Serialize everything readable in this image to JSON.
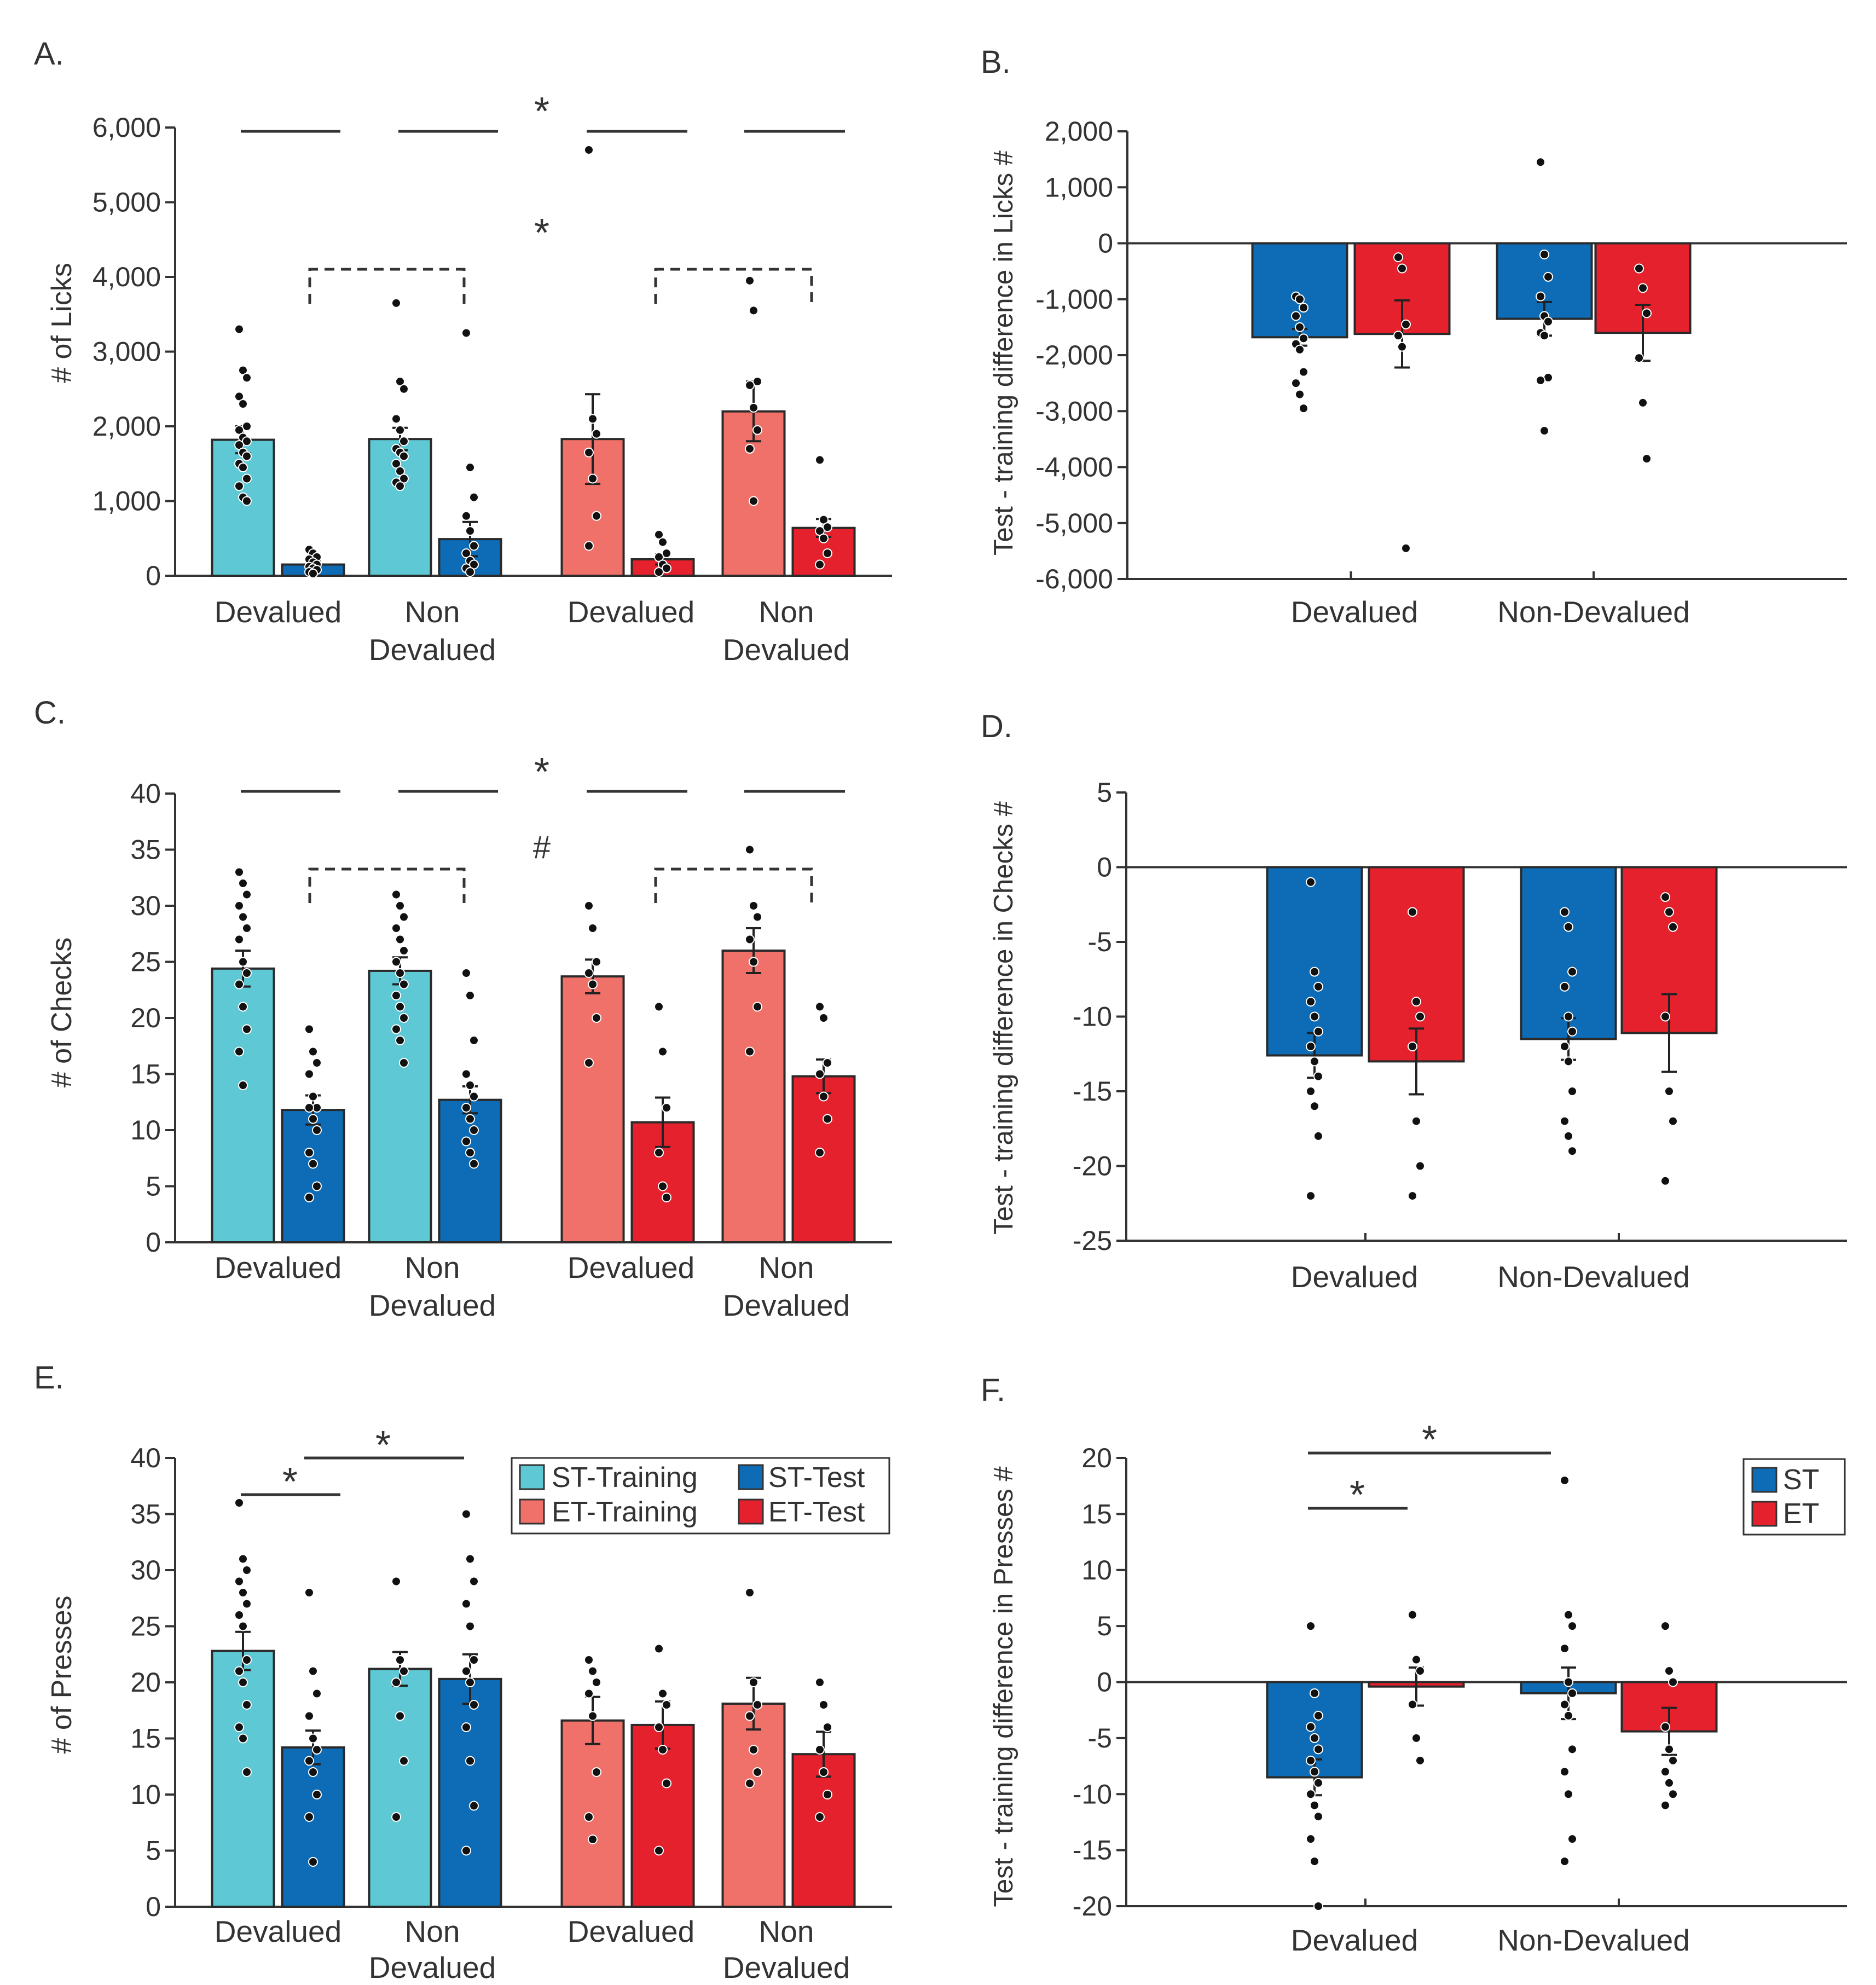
{
  "colors": {
    "st_training": "#5ec8d4",
    "st_test": "#0d6cb5",
    "et_training": "#f0716a",
    "et_test": "#e5212d",
    "st": "#0d6cb5",
    "et": "#e5212d",
    "errorbar": "#222222",
    "dot": "#111111",
    "axis": "#333333"
  },
  "chart_data": [
    {
      "id": "A",
      "panel_label": "A.",
      "type": "bar",
      "ylabel": "# of Licks",
      "ylim": [
        0,
        6000
      ],
      "yticks": [
        0,
        1000,
        2000,
        3000,
        4000,
        5000,
        6000
      ],
      "ytick_labels": [
        "0",
        "1,000",
        "2,000",
        "3,000",
        "4,000",
        "5,000",
        "6,000"
      ],
      "category_labels": [
        [
          "Devalued"
        ],
        [
          "Non",
          "Devalued"
        ],
        [
          "Devalued"
        ],
        [
          "Non",
          "Devalued"
        ]
      ],
      "bars": [
        {
          "color": "st_training",
          "value": 1820,
          "err": 180,
          "points": [
            3300,
            2750,
            2650,
            2400,
            2300,
            2000,
            1950,
            1850,
            1800,
            1750,
            1650,
            1600,
            1500,
            1450,
            1300,
            1200,
            1050,
            1000
          ]
        },
        {
          "color": "st_test",
          "value": 150,
          "err": 40,
          "points": [
            350,
            300,
            250,
            220,
            180,
            150,
            120,
            100,
            80,
            50,
            30
          ]
        },
        {
          "color": "st_training",
          "value": 1830,
          "err": 150,
          "points": [
            3650,
            2600,
            2500,
            2100,
            1950,
            1800,
            1700,
            1650,
            1600,
            1500,
            1400,
            1300,
            1250,
            1200
          ]
        },
        {
          "color": "st_test",
          "value": 490,
          "err": 230,
          "points": [
            3250,
            1450,
            1050,
            800,
            600,
            400,
            300,
            200,
            150,
            100,
            50
          ]
        },
        {
          "color": "et_training",
          "value": 1830,
          "err": 600,
          "points": [
            5700,
            2100,
            1900,
            1650,
            1300,
            800,
            400
          ]
        },
        {
          "color": "et_test",
          "value": 220,
          "err": 70,
          "points": [
            550,
            450,
            300,
            250,
            150,
            100,
            50
          ]
        },
        {
          "color": "et_training",
          "value": 2200,
          "err": 400,
          "points": [
            3950,
            3550,
            2600,
            2550,
            2250,
            1950,
            1700,
            1000
          ]
        },
        {
          "color": "et_test",
          "value": 640,
          "err": 120,
          "points": [
            1550,
            750,
            650,
            600,
            500,
            300,
            150
          ]
        }
      ],
      "annotations": [
        "*",
        "*"
      ]
    },
    {
      "id": "B",
      "panel_label": "B.",
      "type": "bar",
      "ylabel": "Test -  training difference in Licks #",
      "ylim": [
        -6000,
        2000
      ],
      "yticks": [
        -6000,
        -5000,
        -4000,
        -3000,
        -2000,
        -1000,
        0,
        1000,
        2000
      ],
      "ytick_labels": [
        "-6,000",
        "-5,000",
        "-4,000",
        "-3,000",
        "-2,000",
        "-1,000",
        "0",
        "1,000",
        "2,000"
      ],
      "category_labels": [
        [
          "Devalued"
        ],
        [
          "Non-Devalued"
        ]
      ],
      "bars": [
        {
          "color": "st",
          "value": -1680,
          "err": 150,
          "points": [
            -950,
            -1000,
            -1150,
            -1300,
            -1500,
            -1700,
            -1800,
            -1900,
            -2300,
            -2500,
            -2700,
            -2950
          ]
        },
        {
          "color": "et",
          "value": -1620,
          "err": 600,
          "points": [
            -250,
            -450,
            -1450,
            -1650,
            -1850,
            -5450
          ]
        },
        {
          "color": "st",
          "value": -1350,
          "err": 300,
          "points": [
            1450,
            -200,
            -600,
            -950,
            -1300,
            -1400,
            -1600,
            -1650,
            -2400,
            -2450,
            -3350
          ]
        },
        {
          "color": "et",
          "value": -1600,
          "err": 500,
          "points": [
            -450,
            -800,
            -1250,
            -2050,
            -2850,
            -3850
          ]
        }
      ]
    },
    {
      "id": "C",
      "panel_label": "C.",
      "type": "bar",
      "ylabel": "# of Checks",
      "ylim": [
        0,
        40
      ],
      "yticks": [
        0,
        5,
        10,
        15,
        20,
        25,
        30,
        35,
        40
      ],
      "ytick_labels": [
        "0",
        "5",
        "10",
        "15",
        "20",
        "25",
        "30",
        "35",
        "40"
      ],
      "category_labels": [
        [
          "Devalued"
        ],
        [
          "Non",
          "Devalued"
        ],
        [
          "Devalued"
        ],
        [
          "Non",
          "Devalued"
        ]
      ],
      "bars": [
        {
          "color": "st_training",
          "value": 24.4,
          "err": 1.6,
          "points": [
            33,
            32,
            31,
            30,
            29,
            28,
            27,
            25,
            24,
            23,
            21,
            19,
            17,
            14
          ]
        },
        {
          "color": "st_test",
          "value": 11.8,
          "err": 1.3,
          "points": [
            19,
            17,
            16,
            15,
            13,
            12,
            12,
            11,
            10,
            8,
            7,
            5,
            4
          ]
        },
        {
          "color": "st_training",
          "value": 24.2,
          "err": 1.2,
          "points": [
            31,
            30,
            29,
            28,
            27,
            26,
            25,
            24,
            23,
            22,
            21,
            20,
            19,
            18,
            16
          ]
        },
        {
          "color": "st_test",
          "value": 12.7,
          "err": 1.2,
          "points": [
            24,
            22,
            18,
            15,
            14,
            13,
            12,
            11,
            10,
            9,
            8,
            7
          ]
        },
        {
          "color": "et_training",
          "value": 23.7,
          "err": 1.5,
          "points": [
            30,
            28,
            25,
            24,
            23,
            20,
            16
          ]
        },
        {
          "color": "et_test",
          "value": 10.7,
          "err": 2.2,
          "points": [
            21,
            17,
            12,
            8,
            5,
            4
          ]
        },
        {
          "color": "et_training",
          "value": 26.0,
          "err": 2.0,
          "points": [
            35,
            30,
            29,
            27,
            25,
            21,
            17
          ]
        },
        {
          "color": "et_test",
          "value": 14.8,
          "err": 1.5,
          "points": [
            21,
            20,
            16,
            15,
            13,
            11,
            8
          ]
        }
      ],
      "annotations": [
        "*",
        "#"
      ]
    },
    {
      "id": "D",
      "panel_label": "D.",
      "type": "bar",
      "ylabel": "Test -  training difference in Checks #",
      "ylim": [
        -25,
        5
      ],
      "yticks": [
        -25,
        -20,
        -15,
        -10,
        -5,
        0,
        5
      ],
      "ytick_labels": [
        "-25",
        "-20",
        "-15",
        "-10",
        "-5",
        "0",
        "5"
      ],
      "category_labels": [
        [
          "Devalued"
        ],
        [
          "Non-Devalued"
        ]
      ],
      "bars": [
        {
          "color": "st",
          "value": -12.6,
          "err": 1.5,
          "points": [
            -1,
            -7,
            -8,
            -9,
            -10,
            -11,
            -12,
            -13,
            -14,
            -15,
            -16,
            -18,
            -22
          ]
        },
        {
          "color": "et",
          "value": -13.0,
          "err": 2.2,
          "points": [
            -3,
            -9,
            -10,
            -12,
            -17,
            -20,
            -22
          ]
        },
        {
          "color": "st",
          "value": -11.5,
          "err": 1.4,
          "points": [
            -3,
            -4,
            -7,
            -8,
            -10,
            -11,
            -12,
            -13,
            -15,
            -17,
            -18,
            -19
          ]
        },
        {
          "color": "et",
          "value": -11.1,
          "err": 2.6,
          "points": [
            -2,
            -3,
            -4,
            -10,
            -15,
            -17,
            -21
          ]
        }
      ]
    },
    {
      "id": "E",
      "panel_label": "E.",
      "type": "bar",
      "ylabel": "# of Presses",
      "ylim": [
        0,
        40
      ],
      "yticks": [
        0,
        5,
        10,
        15,
        20,
        25,
        30,
        35,
        40
      ],
      "ytick_labels": [
        "0",
        "5",
        "10",
        "15",
        "20",
        "25",
        "30",
        "35",
        "40"
      ],
      "category_labels": [
        [
          "Devalued"
        ],
        [
          "Non",
          "Devalued"
        ],
        [
          "Devalued"
        ],
        [
          "Non",
          "Devalued"
        ]
      ],
      "bars": [
        {
          "color": "st_training",
          "value": 22.8,
          "err": 1.7,
          "points": [
            36,
            31,
            30,
            29,
            28,
            27,
            26,
            25,
            22,
            21,
            20,
            18,
            16,
            15,
            12
          ]
        },
        {
          "color": "st_test",
          "value": 14.2,
          "err": 1.5,
          "points": [
            28,
            21,
            19,
            17,
            15,
            14,
            13,
            12,
            10,
            8,
            4
          ]
        },
        {
          "color": "st_training",
          "value": 21.2,
          "err": 1.5,
          "points": [
            29,
            22,
            21,
            20,
            17,
            13,
            8
          ]
        },
        {
          "color": "st_test",
          "value": 20.3,
          "err": 2.2,
          "points": [
            35,
            31,
            29,
            27,
            25,
            22,
            21,
            20,
            18,
            16,
            13,
            9,
            5
          ]
        },
        {
          "color": "et_training",
          "value": 16.6,
          "err": 2.1,
          "points": [
            22,
            21,
            20,
            19,
            17,
            12,
            8,
            6
          ]
        },
        {
          "color": "et_test",
          "value": 16.2,
          "err": 2.1,
          "points": [
            23,
            19,
            18,
            16,
            14,
            11,
            5
          ]
        },
        {
          "color": "et_training",
          "value": 18.1,
          "err": 2.3,
          "points": [
            28,
            20,
            18,
            17,
            14,
            12,
            11
          ]
        },
        {
          "color": "et_test",
          "value": 13.6,
          "err": 2.0,
          "points": [
            20,
            18,
            16,
            14,
            12,
            10,
            8
          ]
        }
      ],
      "annotations": [
        "*",
        "*"
      ],
      "legend": {
        "position": "top-right",
        "entries": [
          {
            "label": "ST-Training",
            "color": "st_training"
          },
          {
            "label": "ST-Test",
            "color": "st_test"
          },
          {
            "label": "ET-Training",
            "color": "et_training"
          },
          {
            "label": "ET-Test",
            "color": "et_test"
          }
        ]
      }
    },
    {
      "id": "F",
      "panel_label": "F.",
      "type": "bar",
      "ylabel": "Test -  training difference in Presses #",
      "ylim": [
        -20,
        20
      ],
      "yticks": [
        -20,
        -15,
        -10,
        -5,
        0,
        5,
        10,
        15,
        20
      ],
      "ytick_labels": [
        "-20",
        "-15",
        "-10",
        "-5",
        "0",
        "5",
        "10",
        "15",
        "20"
      ],
      "category_labels": [
        [
          "Devalued"
        ],
        [
          "Non-Devalued"
        ]
      ],
      "bars": [
        {
          "color": "st",
          "value": -8.5,
          "err": 1.6,
          "points": [
            5,
            -1,
            -3,
            -4,
            -5,
            -6,
            -7,
            -8,
            -9,
            -10,
            -11,
            -12,
            -14,
            -16,
            -20
          ]
        },
        {
          "color": "et",
          "value": -0.4,
          "err": 1.7,
          "points": [
            6,
            2,
            1,
            -2,
            -5,
            -7
          ]
        },
        {
          "color": "st",
          "value": -1.0,
          "err": 2.3,
          "points": [
            18,
            6,
            5,
            3,
            0,
            -1,
            -2,
            -3,
            -6,
            -8,
            -10,
            -14,
            -16
          ]
        },
        {
          "color": "et",
          "value": -4.4,
          "err": 2.1,
          "points": [
            5,
            1,
            0,
            -4,
            -6,
            -7,
            -8,
            -9,
            -10,
            -11
          ]
        }
      ],
      "annotations": [
        "*",
        "*"
      ],
      "legend": {
        "position": "top-right",
        "entries": [
          {
            "label": "ST",
            "color": "st"
          },
          {
            "label": "ET",
            "color": "et"
          }
        ]
      }
    }
  ]
}
